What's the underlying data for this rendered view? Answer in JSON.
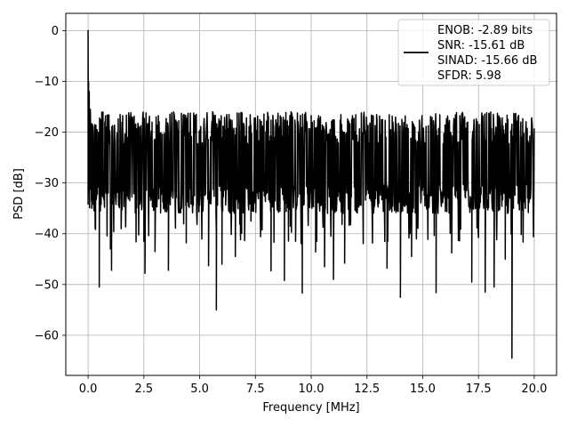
{
  "chart_data": {
    "type": "line",
    "title": "",
    "xlabel": "Frequency [MHz]",
    "ylabel": "PSD [dB]",
    "xlim": [
      -1.0,
      21.0
    ],
    "ylim": [
      -67.9,
      3.4
    ],
    "xticks": [
      0.0,
      2.5,
      5.0,
      7.5,
      10.0,
      12.5,
      15.0,
      17.5,
      20.0
    ],
    "xtick_labels": [
      "0.0",
      "2.5",
      "5.0",
      "7.5",
      "10.0",
      "12.5",
      "15.0",
      "17.5",
      "20.0"
    ],
    "yticks": [
      0,
      -10,
      -20,
      -30,
      -40,
      -50,
      -60
    ],
    "ytick_labels": [
      "0",
      "−10",
      "−20",
      "−30",
      "−40",
      "−50",
      "−60"
    ],
    "grid": true,
    "legend_placement": "top-right",
    "series": [
      {
        "name": "ENOB: -2.89 bits\nSNR: -15.61 dB\nSINAD: -15.66 dB\nSFDR: 5.98",
        "legend_lines": [
          "ENOB: -2.89 bits",
          "SNR: -15.61 dB",
          "SINAD: -15.66 dB",
          "SFDR: 5.98"
        ],
        "color": "#000000",
        "noise_floor_db": {
          "mean": -26.5,
          "upper": -16.0,
          "lower": -36.0
        },
        "x": [
          0.0,
          0.02,
          0.05,
          0.1,
          0.15,
          0.2,
          0.5,
          1.0,
          1.05,
          2.5,
          2.55,
          3.0,
          3.6,
          4.4,
          5.4,
          5.75,
          6.0,
          6.6,
          7.3,
          7.5,
          8.2,
          8.8,
          9.3,
          9.6,
          10.2,
          10.6,
          11.0,
          11.5,
          13.4,
          14.0,
          14.5,
          15.6,
          16.3,
          17.2,
          17.8,
          18.2,
          18.7,
          19.0
        ],
        "y": [
          0.0,
          -10.0,
          -12.0,
          -15.5,
          -25.0,
          -33.5,
          -50.5,
          -43.0,
          -47.2,
          -41.5,
          -47.8,
          -43.5,
          -47.2,
          -41.8,
          -46.3,
          -55.0,
          -46.0,
          -44.5,
          -37.5,
          -17.2,
          -47.3,
          -49.2,
          -41.5,
          -51.7,
          -43.6,
          -46.5,
          -49.0,
          -45.8,
          -46.8,
          -52.5,
          -44.5,
          -51.6,
          -43.8,
          -49.5,
          -51.5,
          -50.5,
          -45.0,
          -64.5
        ]
      }
    ]
  }
}
